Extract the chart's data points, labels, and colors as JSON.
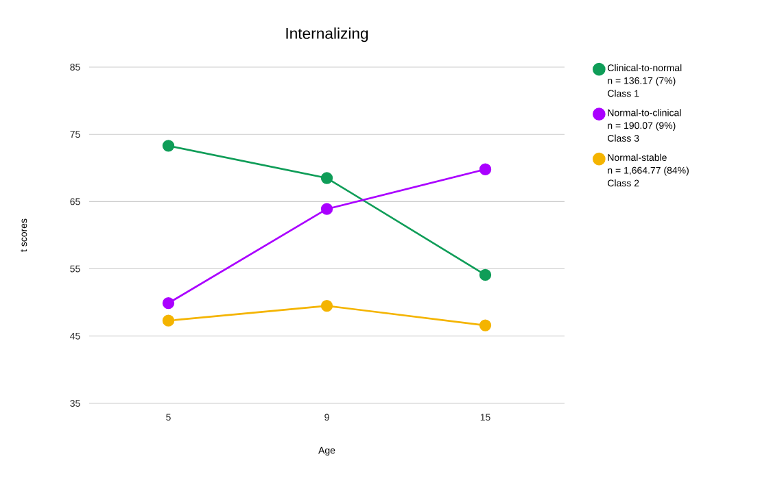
{
  "chart_data": {
    "type": "line",
    "title": "Internalizing",
    "xlabel": "Age",
    "ylabel": "t scores",
    "categories": [
      "5",
      "9",
      "15"
    ],
    "series": [
      {
        "name": "Clinical-to-normal\nn = 136.17 (7%)\nClass 1",
        "color": "#0f9d58",
        "values": [
          73.3,
          68.5,
          54.1
        ]
      },
      {
        "name": "Normal-to-clinical\nn = 190.07 (9%)\nClass 3",
        "color": "#aa00ff",
        "values": [
          49.9,
          63.9,
          69.8
        ]
      },
      {
        "name": "Normal-stable\nn = 1,664.77 (84%)\nClass 2",
        "color": "#f4b400",
        "values": [
          47.3,
          49.5,
          46.6
        ]
      }
    ],
    "ylim": [
      35,
      85
    ],
    "yticks": [
      35,
      45,
      55,
      65,
      75,
      85
    ],
    "grid": "y",
    "legend": "right",
    "marker": "circle",
    "line_style": "solid"
  }
}
